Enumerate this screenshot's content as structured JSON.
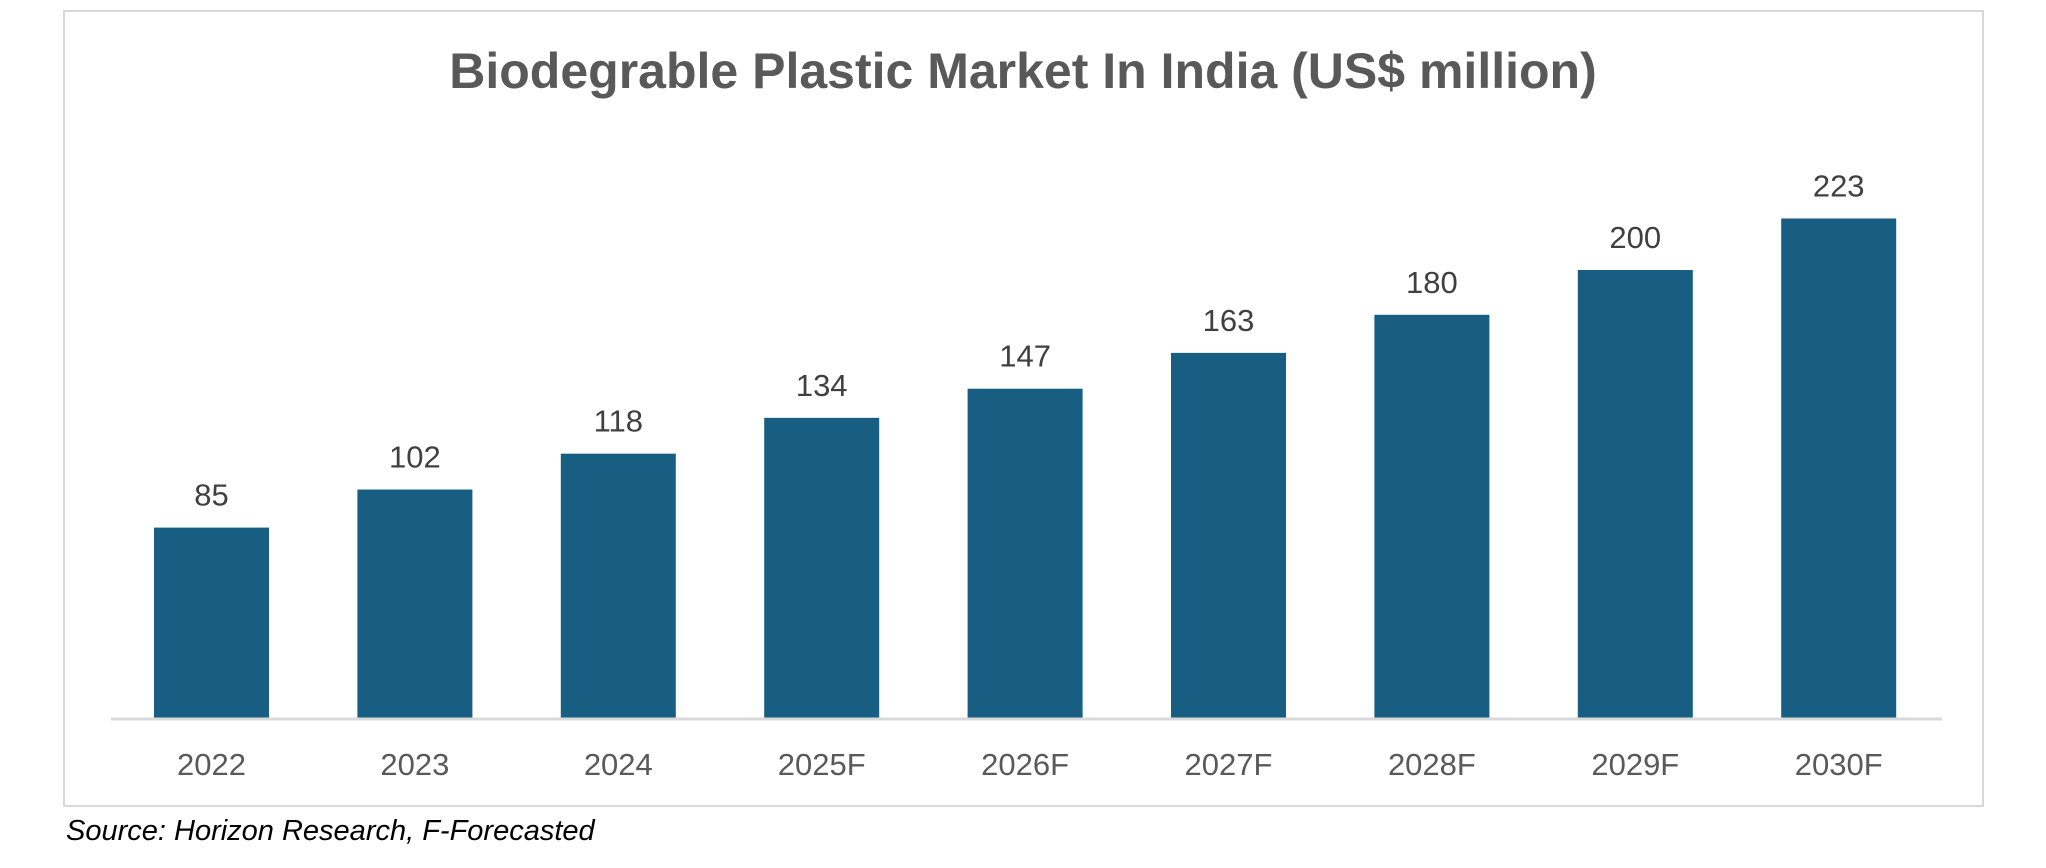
{
  "chart_data": {
    "type": "bar",
    "title": "Biodegrable Plastic Market In India (US$ million)",
    "categories": [
      "2022",
      "2023",
      "2024",
      "2025F",
      "2026F",
      "2027F",
      "2028F",
      "2029F",
      "2030F"
    ],
    "values": [
      85,
      102,
      118,
      134,
      147,
      163,
      180,
      200,
      223
    ],
    "xlabel": "",
    "ylabel": "",
    "ylim": [
      0,
      223
    ],
    "grid": false,
    "bar_color": "#175E82",
    "data_labels": true
  },
  "source": "Source: Horizon Research, F-Forecasted"
}
